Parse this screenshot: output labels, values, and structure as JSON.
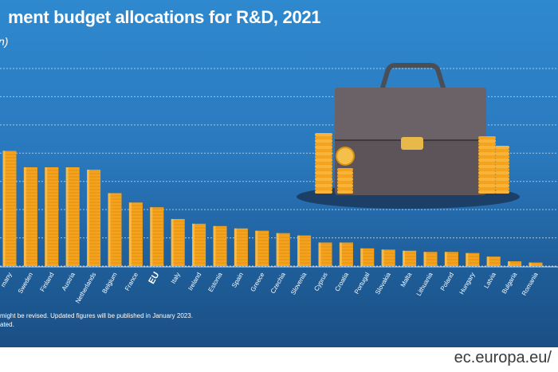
{
  "header": {
    "title": "ment budget allocations for R&D, 2021",
    "subtitle": "n)"
  },
  "chart_data": {
    "type": "bar",
    "categories": [
      "many",
      "Sweden",
      "Finland",
      "Austria",
      "Netherlands",
      "Belgium",
      "France",
      "EU",
      "Italy",
      "Ireland",
      "Estonia",
      "Spain",
      "Greece",
      "Czechia",
      "Slovenia",
      "Cyprus",
      "Croatia",
      "Portugal",
      "Slovakia",
      "Malta",
      "Lithuania",
      "Poland",
      "Hungary",
      "Latvia",
      "Bulgaria",
      "Romania"
    ],
    "highlight": "EU",
    "values": [
      49,
      42,
      42,
      42,
      41,
      31,
      27,
      25,
      20,
      18,
      17,
      16,
      15,
      14,
      13,
      10,
      10,
      7.5,
      7,
      6.5,
      6,
      6,
      5.5,
      4,
      2,
      1.5
    ],
    "ylim": [
      0,
      84
    ],
    "grid": true,
    "bar_color": "#f5a21c"
  },
  "footnotes": {
    "line1": "might be revised. Updated figures will be published in January 2023.",
    "line2": "ated."
  },
  "source": "ec.europa.eu/"
}
